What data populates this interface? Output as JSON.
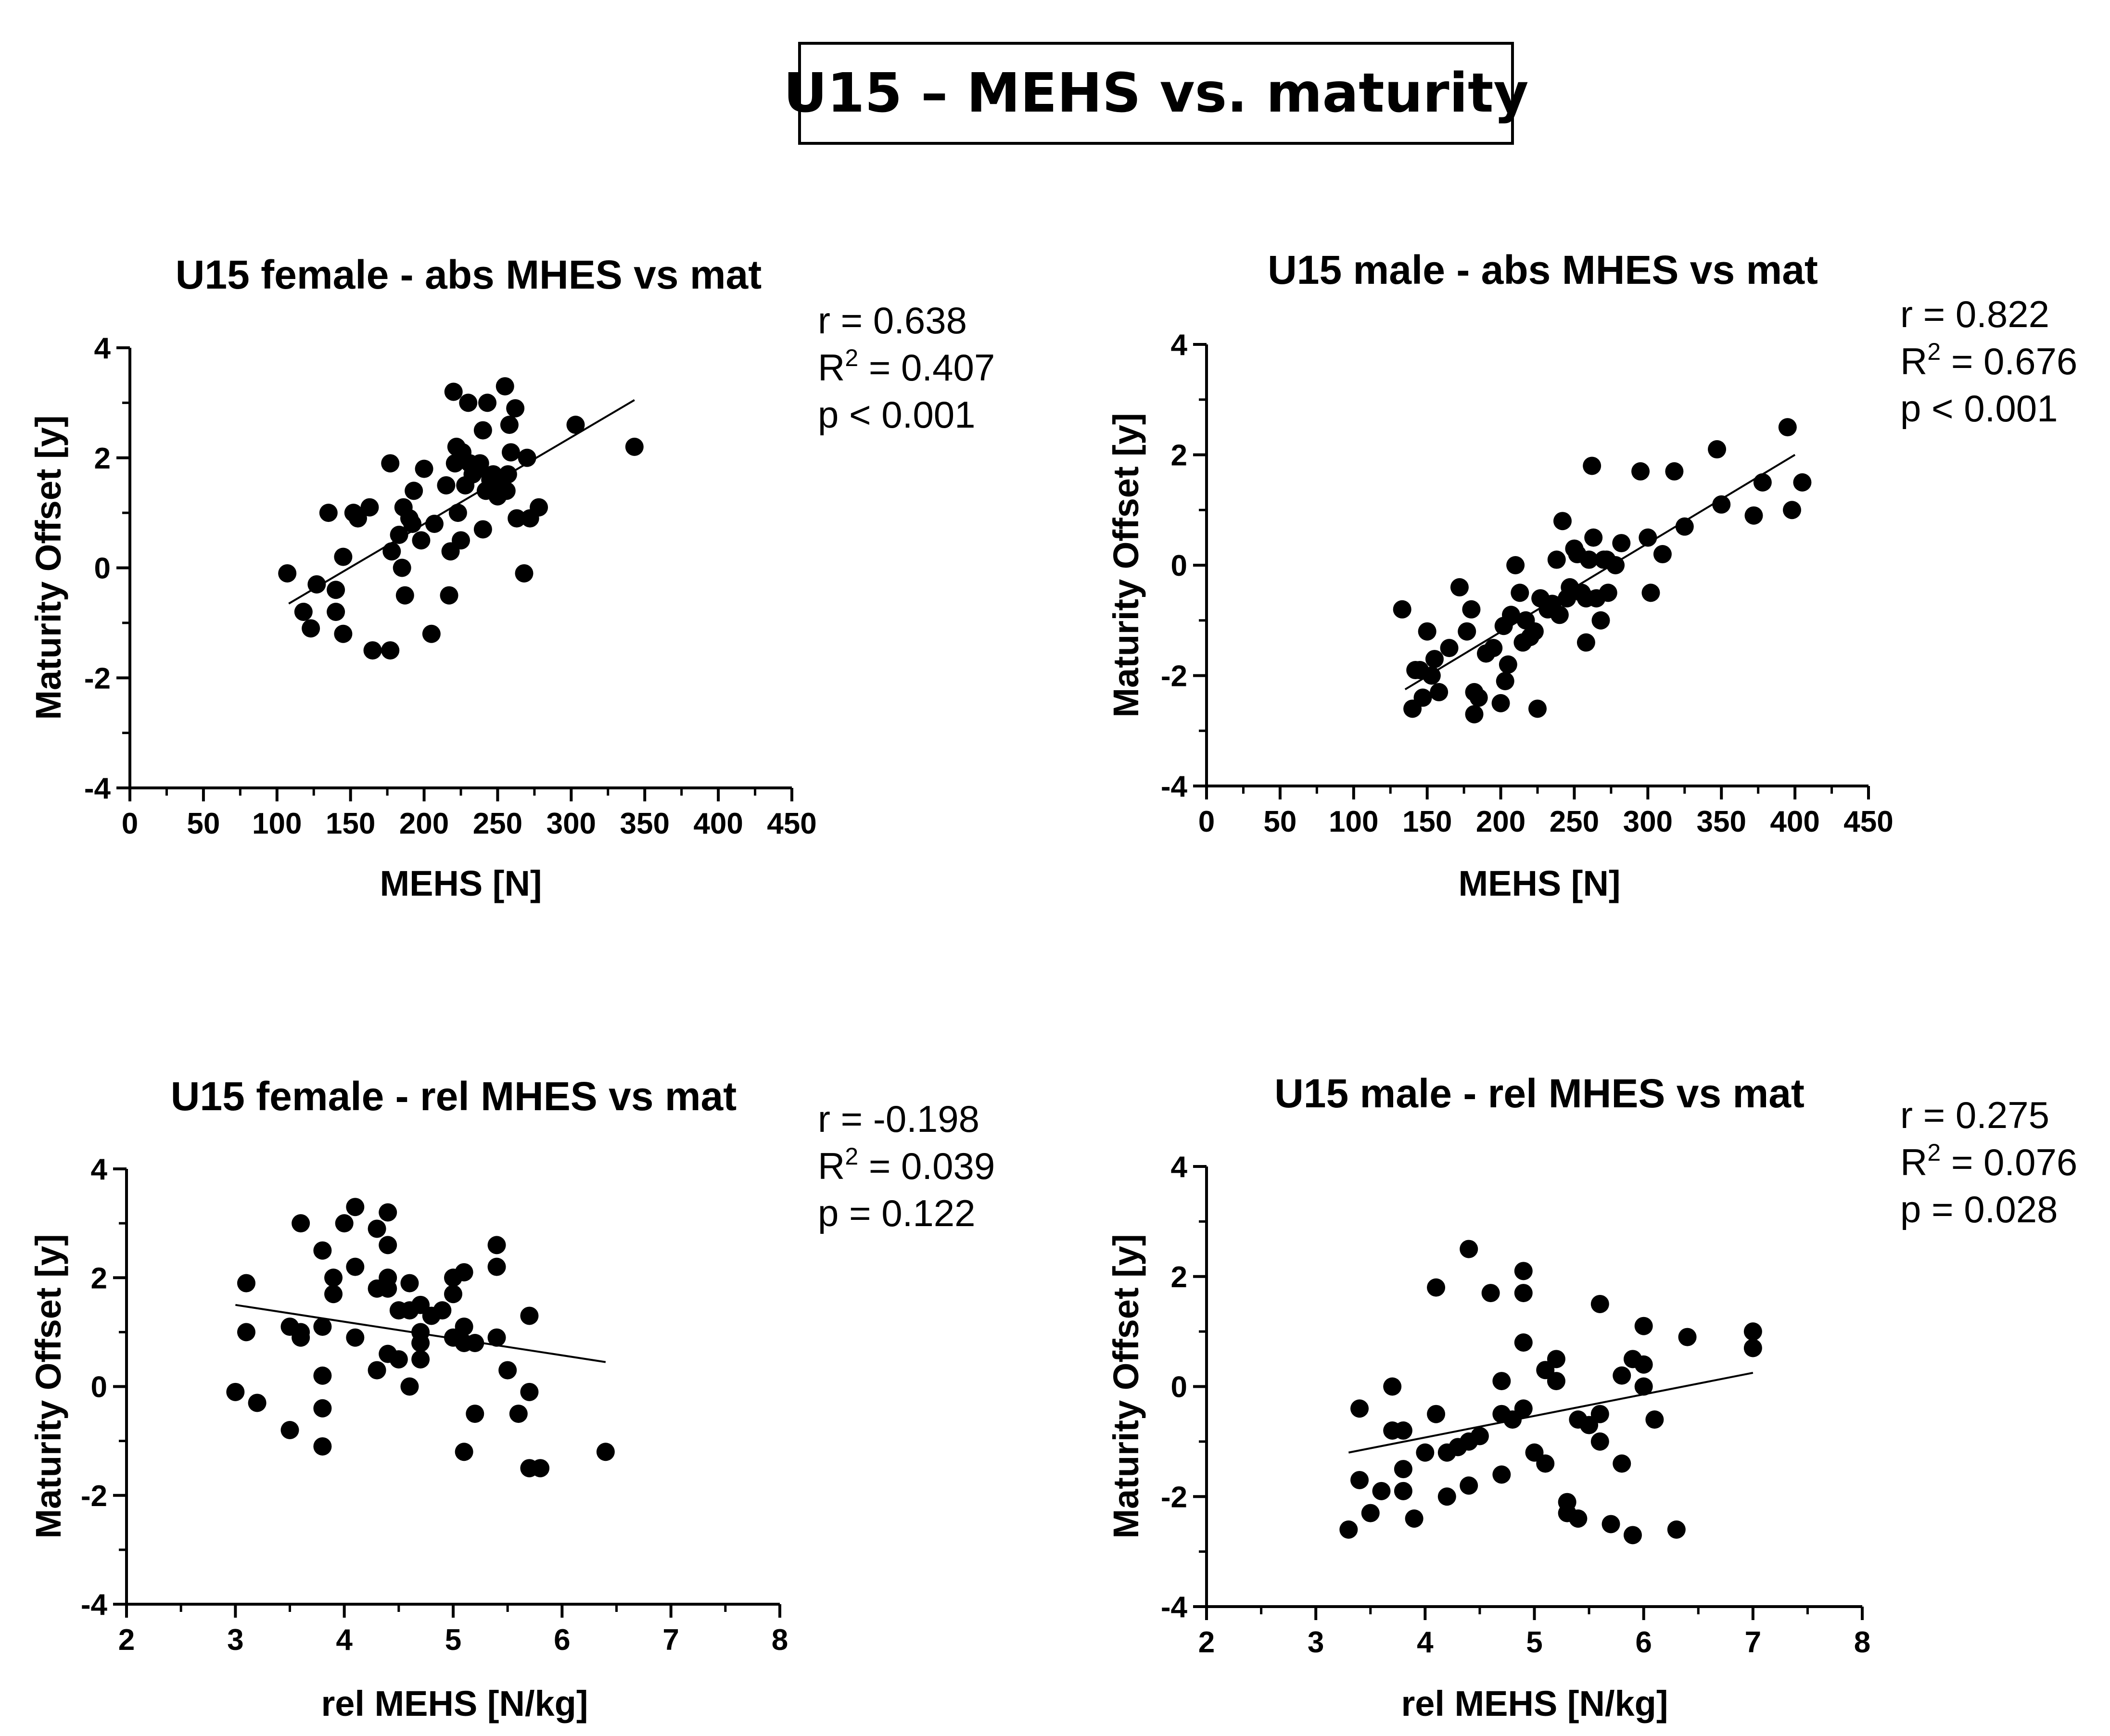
{
  "figure_title": "U15 – MEHS vs. maturity",
  "colors": {
    "points": "#000000",
    "line": "#000000",
    "background": "#ffffff"
  },
  "chart_data": [
    {
      "id": "female-abs",
      "type": "scatter",
      "title": "U15 female - abs MHES vs mat",
      "xlabel": "MEHS [N]",
      "ylabel": "Maturity Offset [y]",
      "xlim": [
        0,
        450
      ],
      "ylim": [
        -4,
        4
      ],
      "xticks": [
        0,
        50,
        100,
        150,
        200,
        250,
        300,
        350,
        400,
        450
      ],
      "yticks": [
        -4,
        -2,
        0,
        2,
        4
      ],
      "stats": {
        "r": "r = 0.638",
        "r2_label": "R",
        "r2_value": " = 0.407",
        "p": "p < 0.001"
      },
      "regression": {
        "x": [
          108,
          343
        ],
        "y": [
          -0.65,
          3.05
        ]
      },
      "points": [
        [
          107,
          -0.1
        ],
        [
          118,
          -0.8
        ],
        [
          123,
          -1.1
        ],
        [
          127,
          -0.3
        ],
        [
          135,
          1.0
        ],
        [
          140,
          -0.8
        ],
        [
          140,
          -0.4
        ],
        [
          145,
          -1.2
        ],
        [
          145,
          0.2
        ],
        [
          152,
          1.0
        ],
        [
          155,
          0.9
        ],
        [
          163,
          1.1
        ],
        [
          165,
          -1.5
        ],
        [
          177,
          -1.5
        ],
        [
          177,
          1.9
        ],
        [
          178,
          0.3
        ],
        [
          183,
          0.6
        ],
        [
          185,
          0.0
        ],
        [
          186,
          1.1
        ],
        [
          187,
          -0.5
        ],
        [
          190,
          0.9
        ],
        [
          192,
          0.8
        ],
        [
          193,
          1.4
        ],
        [
          198,
          0.5
        ],
        [
          200,
          1.8
        ],
        [
          205,
          -1.2
        ],
        [
          207,
          0.8
        ],
        [
          215,
          1.5
        ],
        [
          217,
          -0.5
        ],
        [
          218,
          0.3
        ],
        [
          220,
          3.2
        ],
        [
          221,
          1.9
        ],
        [
          222,
          2.2
        ],
        [
          223,
          1.0
        ],
        [
          225,
          0.5
        ],
        [
          226,
          2.1
        ],
        [
          228,
          1.5
        ],
        [
          230,
          3.0
        ],
        [
          231,
          1.9
        ],
        [
          233,
          1.7
        ],
        [
          237,
          1.8
        ],
        [
          238,
          1.9
        ],
        [
          240,
          2.5
        ],
        [
          240,
          0.7
        ],
        [
          242,
          1.4
        ],
        [
          243,
          3.0
        ],
        [
          245,
          1.6
        ],
        [
          247,
          1.7
        ],
        [
          250,
          1.3
        ],
        [
          253,
          1.5
        ],
        [
          255,
          3.3
        ],
        [
          256,
          1.4
        ],
        [
          257,
          1.7
        ],
        [
          258,
          2.6
        ],
        [
          259,
          2.1
        ],
        [
          262,
          2.9
        ],
        [
          263,
          0.9
        ],
        [
          268,
          -0.1
        ],
        [
          270,
          2.0
        ],
        [
          272,
          0.9
        ],
        [
          278,
          1.1
        ],
        [
          303,
          2.6
        ],
        [
          343,
          2.2
        ]
      ]
    },
    {
      "id": "male-abs",
      "type": "scatter",
      "title": "U15 male - abs MHES vs mat",
      "xlabel": "MEHS [N]",
      "ylabel": "Maturity Offset [y]",
      "xlim": [
        0,
        450
      ],
      "ylim": [
        -4,
        4
      ],
      "xticks": [
        0,
        50,
        100,
        150,
        200,
        250,
        300,
        350,
        400,
        450
      ],
      "yticks": [
        -4,
        -2,
        0,
        2,
        4
      ],
      "stats": {
        "r": "r = 0.822",
        "r2_label": "R",
        "r2_value": " = 0.676",
        "p": "p < 0.001"
      },
      "regression": {
        "x": [
          135,
          400
        ],
        "y": [
          -2.25,
          2.0
        ]
      },
      "points": [
        [
          133,
          -0.8
        ],
        [
          140,
          -2.6
        ],
        [
          142,
          -1.9
        ],
        [
          145,
          -1.9
        ],
        [
          147,
          -2.4
        ],
        [
          150,
          -1.2
        ],
        [
          153,
          -2.0
        ],
        [
          155,
          -1.7
        ],
        [
          158,
          -2.3
        ],
        [
          165,
          -1.5
        ],
        [
          172,
          -0.4
        ],
        [
          177,
          -1.2
        ],
        [
          180,
          -0.8
        ],
        [
          182,
          -2.3
        ],
        [
          182,
          -2.7
        ],
        [
          185,
          -2.4
        ],
        [
          190,
          -1.6
        ],
        [
          195,
          -1.5
        ],
        [
          200,
          -2.5
        ],
        [
          202,
          -1.1
        ],
        [
          203,
          -2.1
        ],
        [
          205,
          -1.8
        ],
        [
          207,
          -0.9
        ],
        [
          210,
          0.0
        ],
        [
          213,
          -0.5
        ],
        [
          215,
          -1.4
        ],
        [
          217,
          -1.0
        ],
        [
          220,
          -1.3
        ],
        [
          223,
          -1.2
        ],
        [
          225,
          -2.6
        ],
        [
          227,
          -0.6
        ],
        [
          232,
          -0.8
        ],
        [
          235,
          -0.7
        ],
        [
          238,
          0.1
        ],
        [
          240,
          -0.9
        ],
        [
          242,
          0.8
        ],
        [
          245,
          -0.6
        ],
        [
          247,
          -0.4
        ],
        [
          250,
          0.3
        ],
        [
          252,
          0.2
        ],
        [
          255,
          -0.5
        ],
        [
          258,
          -1.4
        ],
        [
          258,
          -0.6
        ],
        [
          260,
          0.1
        ],
        [
          262,
          1.8
        ],
        [
          263,
          0.5
        ],
        [
          265,
          -0.6
        ],
        [
          268,
          -1.0
        ],
        [
          270,
          0.1
        ],
        [
          272,
          0.1
        ],
        [
          273,
          -0.5
        ],
        [
          278,
          0.0
        ],
        [
          282,
          0.4
        ],
        [
          295,
          1.7
        ],
        [
          300,
          0.5
        ],
        [
          302,
          -0.5
        ],
        [
          310,
          0.2
        ],
        [
          318,
          1.7
        ],
        [
          325,
          0.7
        ],
        [
          347,
          2.1
        ],
        [
          350,
          1.1
        ],
        [
          372,
          0.9
        ],
        [
          378,
          1.5
        ],
        [
          395,
          2.5
        ],
        [
          398,
          1.0
        ],
        [
          405,
          1.5
        ]
      ]
    },
    {
      "id": "female-rel",
      "type": "scatter",
      "title": "U15 female - rel MHES vs mat",
      "xlabel": "rel MEHS [N/kg]",
      "ylabel": "Maturity Offset [y]",
      "xlim": [
        2,
        8
      ],
      "ylim": [
        -4,
        4
      ],
      "xticks": [
        2,
        3,
        4,
        5,
        6,
        7,
        8
      ],
      "yticks": [
        -4,
        -2,
        0,
        2,
        4
      ],
      "stats": {
        "r": "r = -0.198",
        "r2_label": "R",
        "r2_value": " = 0.039",
        "p": "p = 0.122"
      },
      "regression": {
        "x": [
          3.0,
          6.4
        ],
        "y": [
          1.5,
          0.45
        ]
      },
      "points": [
        [
          3.0,
          -0.1
        ],
        [
          3.1,
          1.9
        ],
        [
          3.1,
          1.0
        ],
        [
          3.2,
          -0.3
        ],
        [
          3.5,
          1.1
        ],
        [
          3.5,
          -0.8
        ],
        [
          3.6,
          0.9
        ],
        [
          3.6,
          3.0
        ],
        [
          3.6,
          1.0
        ],
        [
          3.8,
          2.5
        ],
        [
          3.8,
          1.1
        ],
        [
          3.8,
          0.2
        ],
        [
          3.8,
          -0.4
        ],
        [
          3.8,
          -1.1
        ],
        [
          3.9,
          1.7
        ],
        [
          3.9,
          2.0
        ],
        [
          4.0,
          3.0
        ],
        [
          4.1,
          3.3
        ],
        [
          4.1,
          2.2
        ],
        [
          4.1,
          0.9
        ],
        [
          4.3,
          2.9
        ],
        [
          4.3,
          1.8
        ],
        [
          4.3,
          0.3
        ],
        [
          4.4,
          3.2
        ],
        [
          4.4,
          2.6
        ],
        [
          4.4,
          2.0
        ],
        [
          4.4,
          1.8
        ],
        [
          4.4,
          0.6
        ],
        [
          4.5,
          1.4
        ],
        [
          4.5,
          0.5
        ],
        [
          4.6,
          1.9
        ],
        [
          4.6,
          1.4
        ],
        [
          4.6,
          0.0
        ],
        [
          4.7,
          1.5
        ],
        [
          4.7,
          1.0
        ],
        [
          4.7,
          0.8
        ],
        [
          4.7,
          0.5
        ],
        [
          4.8,
          1.3
        ],
        [
          4.9,
          1.4
        ],
        [
          5.0,
          2.0
        ],
        [
          5.0,
          1.7
        ],
        [
          5.0,
          0.9
        ],
        [
          5.1,
          2.1
        ],
        [
          5.1,
          1.1
        ],
        [
          5.1,
          0.8
        ],
        [
          5.1,
          -1.2
        ],
        [
          5.2,
          0.8
        ],
        [
          5.2,
          -0.5
        ],
        [
          5.4,
          0.9
        ],
        [
          5.4,
          2.6
        ],
        [
          5.4,
          2.2
        ],
        [
          5.5,
          0.3
        ],
        [
          5.6,
          -0.5
        ],
        [
          5.7,
          1.3
        ],
        [
          5.7,
          -0.1
        ],
        [
          5.7,
          -1.5
        ],
        [
          5.8,
          -1.5
        ],
        [
          6.4,
          -1.2
        ]
      ]
    },
    {
      "id": "male-rel",
      "type": "scatter",
      "title": "U15 male - rel MHES vs mat",
      "xlabel": "rel MEHS [N/kg]",
      "ylabel": "Maturity Offset [y]",
      "xlim": [
        2,
        8
      ],
      "ylim": [
        -4,
        4
      ],
      "xticks": [
        2,
        3,
        4,
        5,
        6,
        7,
        8
      ],
      "yticks": [
        -4,
        -2,
        0,
        2,
        4
      ],
      "stats": {
        "r": "r = 0.275",
        "r2_label": "R",
        "r2_value": " = 0.076",
        "p": "p = 0.028"
      },
      "regression": {
        "x": [
          3.3,
          7.0
        ],
        "y": [
          -1.2,
          0.25
        ]
      },
      "points": [
        [
          3.3,
          -2.6
        ],
        [
          3.4,
          -1.7
        ],
        [
          3.4,
          -0.4
        ],
        [
          3.5,
          -2.3
        ],
        [
          3.6,
          -1.9
        ],
        [
          3.7,
          0.0
        ],
        [
          3.7,
          -0.8
        ],
        [
          3.8,
          -0.8
        ],
        [
          3.8,
          -1.5
        ],
        [
          3.8,
          -1.9
        ],
        [
          3.9,
          -2.4
        ],
        [
          4.0,
          -1.2
        ],
        [
          4.1,
          1.8
        ],
        [
          4.1,
          -0.5
        ],
        [
          4.2,
          -1.2
        ],
        [
          4.2,
          -2.0
        ],
        [
          4.3,
          -1.1
        ],
        [
          4.4,
          2.5
        ],
        [
          4.4,
          -1.0
        ],
        [
          4.4,
          -1.8
        ],
        [
          4.5,
          -0.9
        ],
        [
          4.6,
          1.7
        ],
        [
          4.7,
          0.1
        ],
        [
          4.7,
          -0.5
        ],
        [
          4.7,
          -1.6
        ],
        [
          4.8,
          -0.6
        ],
        [
          4.9,
          2.1
        ],
        [
          4.9,
          1.7
        ],
        [
          4.9,
          0.8
        ],
        [
          4.9,
          -0.4
        ],
        [
          5.0,
          -1.2
        ],
        [
          5.1,
          0.3
        ],
        [
          5.1,
          -1.4
        ],
        [
          5.2,
          0.5
        ],
        [
          5.2,
          0.1
        ],
        [
          5.3,
          -2.1
        ],
        [
          5.3,
          -2.3
        ],
        [
          5.4,
          -0.6
        ],
        [
          5.4,
          -2.4
        ],
        [
          5.5,
          -0.7
        ],
        [
          5.6,
          1.5
        ],
        [
          5.6,
          -0.5
        ],
        [
          5.6,
          -1.0
        ],
        [
          5.7,
          -2.5
        ],
        [
          5.8,
          0.2
        ],
        [
          5.8,
          -1.4
        ],
        [
          5.9,
          0.5
        ],
        [
          5.9,
          -2.7
        ],
        [
          6.0,
          1.1
        ],
        [
          6.0,
          0.4
        ],
        [
          6.0,
          0.0
        ],
        [
          6.1,
          -0.6
        ],
        [
          6.3,
          -2.6
        ],
        [
          6.4,
          0.9
        ],
        [
          7.0,
          1.0
        ],
        [
          7.0,
          0.7
        ]
      ]
    }
  ]
}
